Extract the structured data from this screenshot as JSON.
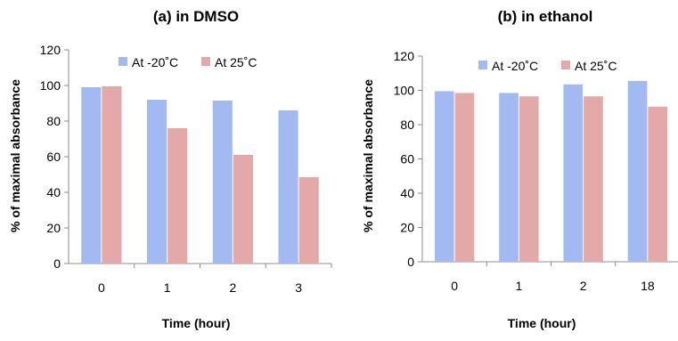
{
  "chart_data": [
    {
      "type": "bar",
      "title": "(a) in DMSO",
      "xlabel": "Time (hour)",
      "ylabel": "% of maximal absorbance",
      "categories": [
        "0",
        "1",
        "2",
        "3"
      ],
      "series": [
        {
          "name": "At -20˚C",
          "values": [
            99,
            92,
            91.5,
            86
          ],
          "color": "#A3B9F2"
        },
        {
          "name": "At 25˚C",
          "values": [
            99.5,
            76,
            61,
            48.5
          ],
          "color": "#E3A8A8"
        }
      ],
      "ylim": [
        0,
        120
      ],
      "yticks": [
        0,
        20,
        40,
        60,
        80,
        100,
        120
      ],
      "grid": false,
      "legend": "top-right"
    },
    {
      "type": "bar",
      "title": "(b) in ethanol",
      "xlabel": "Time (hour)",
      "ylabel": "% of maximal absorbance",
      "categories": [
        "0",
        "1",
        "2",
        "18"
      ],
      "series": [
        {
          "name": "At -20˚C",
          "values": [
            99.5,
            98.5,
            103.5,
            105.5
          ],
          "color": "#A3B9F2"
        },
        {
          "name": "At 25˚C",
          "values": [
            98.5,
            96.5,
            96.5,
            90.5
          ],
          "color": "#E3A8A8"
        }
      ],
      "ylim": [
        0,
        120
      ],
      "yticks": [
        0,
        20,
        40,
        60,
        80,
        100,
        120
      ],
      "grid": false,
      "legend": "top-right"
    }
  ]
}
